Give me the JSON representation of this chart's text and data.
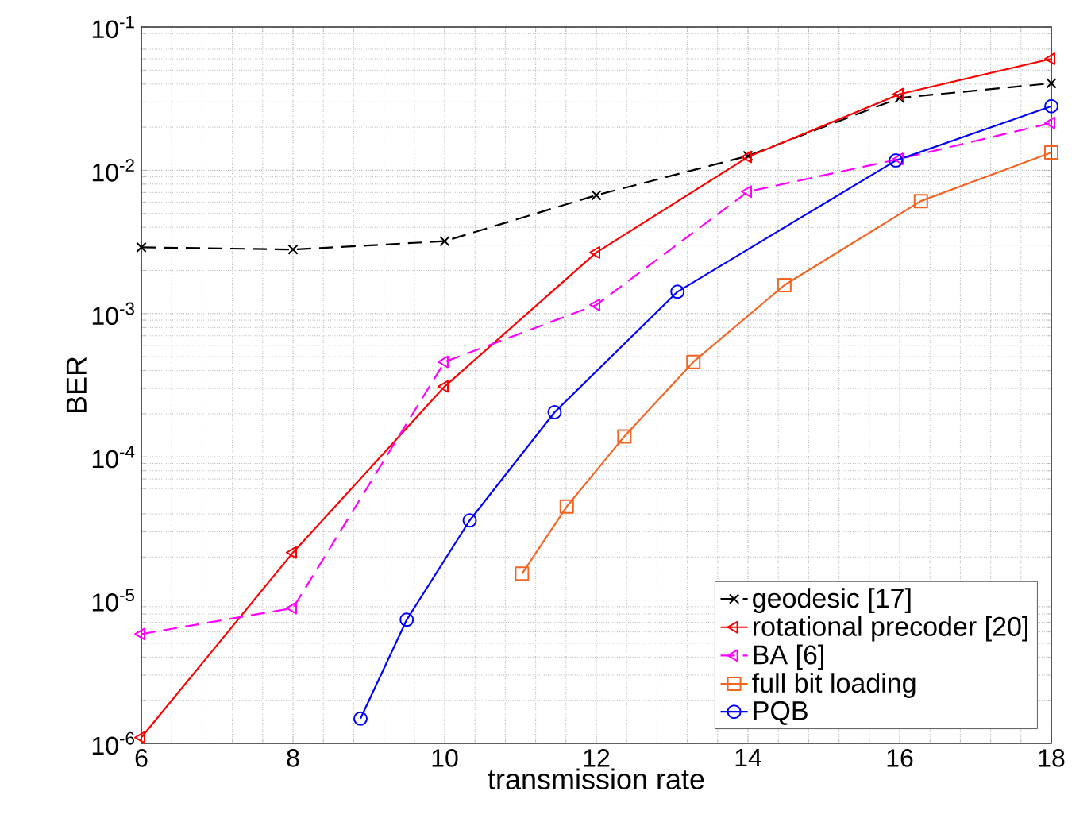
{
  "chart_data": {
    "type": "line",
    "xlabel": "transmission rate",
    "ylabel": "BER",
    "log": "y",
    "xlim": [
      6,
      18
    ],
    "xticks": [
      6,
      8,
      10,
      12,
      14,
      16,
      18
    ],
    "ylim": [
      1e-06,
      0.1
    ],
    "yticks": [
      {
        "value": 1e-06,
        "label": "10$^{-6}$"
      },
      {
        "value": 1e-05,
        "label": "10$^{-5}$"
      },
      {
        "value": 0.0001,
        "label": "10$^{-4}$"
      },
      {
        "value": 0.001,
        "label": "10$^{-3}$"
      },
      {
        "value": 0.01,
        "label": "10$^{-2}$"
      },
      {
        "value": 0.1,
        "label": "10$^{-1}$"
      }
    ],
    "grid": true,
    "legend": "bottom right",
    "series": [
      {
        "name": "geodesic [17]",
        "color": "#000000",
        "marker": "cross",
        "line_style": "dashed",
        "x": [
          6,
          8,
          10,
          12,
          14,
          16,
          18
        ],
        "values": [
          0.0029,
          0.0028,
          0.0032,
          0.0067,
          0.0126,
          0.032,
          0.0405
        ]
      },
      {
        "name": "rotational precoder [20]",
        "color": "#ff0000",
        "marker": "triangle",
        "line_style": "solid",
        "x": [
          6,
          8,
          10,
          12,
          14,
          16,
          18
        ],
        "values": [
          1.1e-06,
          2.15e-05,
          0.00031,
          0.00267,
          0.0124,
          0.034,
          0.06
        ]
      },
      {
        "name": "BA [6]",
        "color": "#ff00ff",
        "marker": "triangle",
        "line_style": "dashed",
        "x": [
          6,
          8,
          10,
          12,
          14,
          16,
          18
        ],
        "values": [
          5.8e-06,
          8.8e-06,
          0.00046,
          0.00115,
          0.0071,
          0.012,
          0.0214
        ]
      },
      {
        "name": "full bit loading",
        "color": "#f26522",
        "marker": "square",
        "line_style": "solid",
        "x": [
          11.02,
          11.61,
          12.37,
          13.28,
          14.48,
          16.28,
          18
        ],
        "values": [
          1.53e-05,
          4.5e-05,
          0.000139,
          0.00046,
          0.00158,
          0.0061,
          0.0133
        ]
      },
      {
        "name": "PQB",
        "color": "#0000ff",
        "marker": "circle",
        "line_style": "solid",
        "x": [
          8.89,
          9.5,
          10.33,
          11.45,
          13.07,
          15.95,
          18
        ],
        "values": [
          1.49e-06,
          7.3e-06,
          3.6e-05,
          0.000205,
          0.00142,
          0.0117,
          0.028
        ]
      }
    ]
  }
}
